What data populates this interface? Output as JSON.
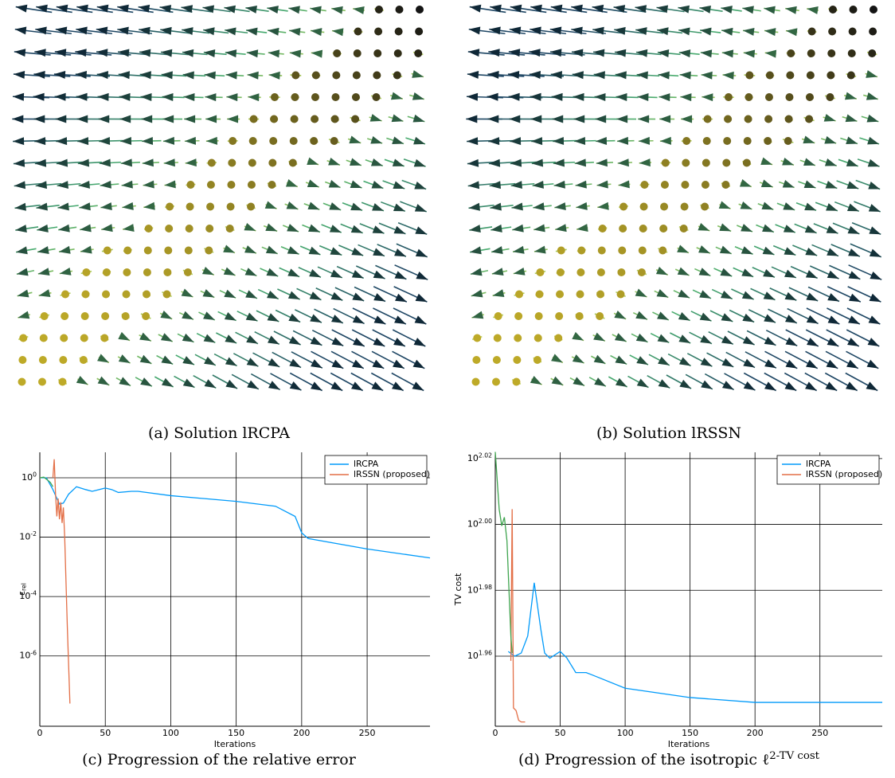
{
  "figures": [
    {
      "caption": "(a) Solution lRCPA"
    },
    {
      "caption": "(b) Solution lRSSN"
    }
  ],
  "chart_data": [
    {
      "type": "line",
      "caption": "(c) Progression of the relative error",
      "xlabel": "Iterations",
      "ylabel": "ε_rel",
      "log_y": true,
      "grid": true,
      "legend": "top-right",
      "xlim": [
        0,
        298
      ],
      "xticks": [
        0,
        50,
        100,
        150,
        200,
        250
      ],
      "ylim": [
        4.3e-09,
        7.2
      ],
      "yticks": [
        {
          "value": 1,
          "label": "10^0"
        },
        {
          "value": 0.01,
          "label": "10^-2"
        },
        {
          "value": 0.0001,
          "label": "10^-4"
        },
        {
          "value": 1e-06,
          "label": "10^-6"
        }
      ],
      "series": [
        {
          "name": "lRCPA",
          "color": "#009AFA",
          "x": [
            1,
            5,
            10,
            15,
            18,
            22,
            28,
            35,
            40,
            50,
            55,
            60,
            70,
            75,
            100,
            150,
            180,
            195,
            200,
            205,
            250,
            298
          ],
          "values": [
            1.0,
            1.0,
            0.4,
            0.13,
            0.14,
            0.28,
            0.5,
            0.4,
            0.35,
            0.45,
            0.4,
            0.32,
            0.35,
            0.35,
            0.25,
            0.16,
            0.11,
            0.05,
            0.014,
            0.009,
            0.004,
            0.002
          ]
        },
        {
          "name": "lRSSN (proposed)",
          "color": "#E36F47",
          "x": [
            10,
            11,
            12,
            13,
            14,
            15,
            16,
            17,
            18,
            19,
            21,
            23
          ],
          "values": [
            1.0,
            4.2,
            0.29,
            0.05,
            0.2,
            0.04,
            0.15,
            0.03,
            0.1,
            0.01,
            1e-05,
            2.5e-08
          ]
        },
        {
          "color": "#3EA44E",
          "x": [
            0,
            3,
            5,
            8,
            10
          ],
          "values": [
            1.0,
            1.05,
            0.9,
            0.7,
            0.5
          ]
        }
      ]
    },
    {
      "type": "line",
      "caption": "(d) Progression of the isotropic ℓ^2-TV cost",
      "xlabel": "Iterations",
      "ylabel": "TV cost",
      "log_y": true,
      "grid": true,
      "legend": "top-right",
      "xlim": [
        0,
        298
      ],
      "xticks": [
        0,
        50,
        100,
        150,
        200,
        250
      ],
      "ylim": [
        86.84,
        105.17
      ],
      "yticks": [
        {
          "value": 104.71,
          "label": "10^2.02"
        },
        {
          "value": 100,
          "label": "10^2.00"
        },
        {
          "value": 95.5,
          "label": "10^1.98"
        },
        {
          "value": 91.2,
          "label": "10^1.96"
        }
      ],
      "series": [
        {
          "name": "lRCPA",
          "color": "#009AFA",
          "x": [
            10,
            15,
            20,
            25,
            30,
            35,
            38,
            42,
            50,
            55,
            62,
            70,
            75,
            100,
            150,
            200,
            298
          ],
          "values": [
            91.5,
            91.2,
            91.4,
            92.5,
            96.0,
            92.97,
            91.4,
            91.07,
            91.5,
            91.1,
            90.16,
            90.16,
            90.0,
            89.18,
            88.6,
            88.3,
            88.3
          ]
        },
        {
          "name": "lRSSN (proposed)",
          "color": "#E36F47",
          "x": [
            12,
            13,
            14,
            16,
            18,
            20,
            23
          ],
          "values": [
            90.9,
            101.07,
            87.96,
            87.8,
            87.2,
            87.1,
            87.1
          ]
        },
        {
          "color": "#3EA44E",
          "x": [
            0,
            3,
            5,
            7,
            9,
            12,
            13
          ],
          "values": [
            105.2,
            101.07,
            99.9,
            100.5,
            98.86,
            92.5,
            91.4
          ]
        }
      ]
    }
  ]
}
